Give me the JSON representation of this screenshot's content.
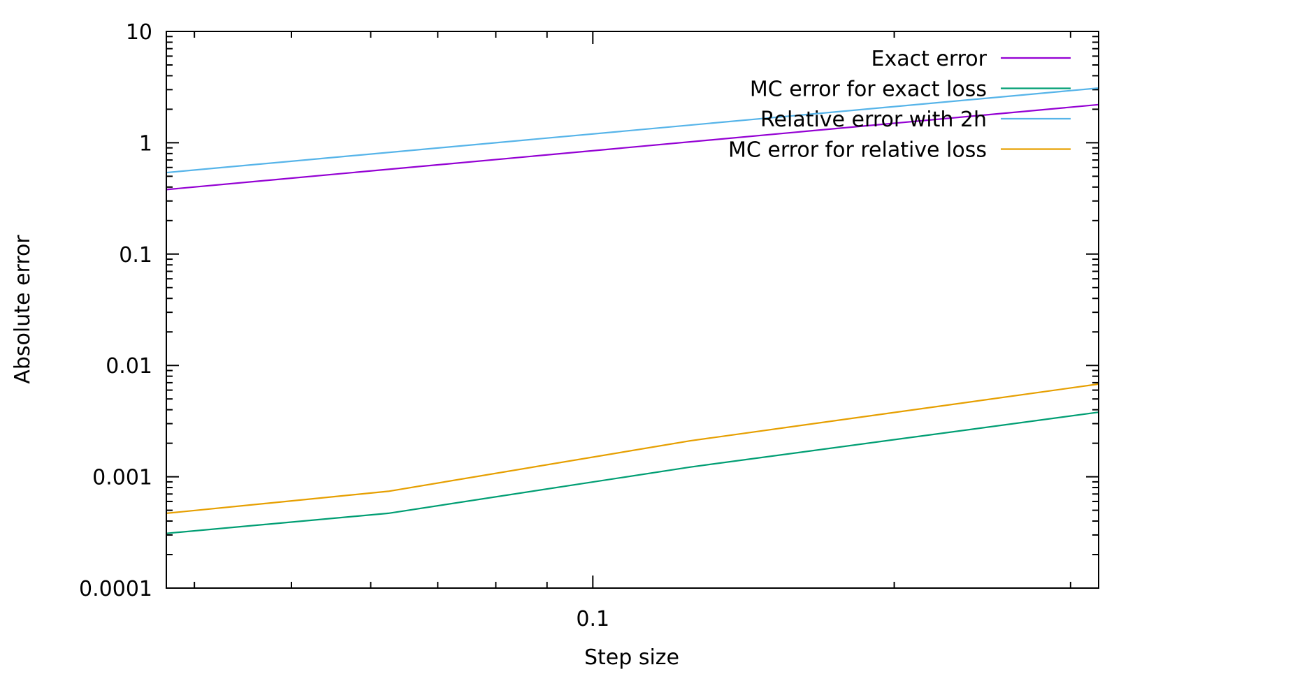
{
  "chart_data": {
    "type": "line",
    "xlabel": "Step size",
    "ylabel": "Absolute error",
    "xscale": "log",
    "yscale": "log",
    "xlim": [
      0.0375,
      0.32
    ],
    "ylim": [
      0.0001,
      10
    ],
    "x_tick_labels": [
      {
        "value": 0.1,
        "label": "0.1"
      }
    ],
    "y_tick_labels": [
      {
        "value": 0.0001,
        "label": "0.0001"
      },
      {
        "value": 0.001,
        "label": "0.001"
      },
      {
        "value": 0.01,
        "label": "0.01"
      },
      {
        "value": 0.1,
        "label": "0.1"
      },
      {
        "value": 1,
        "label": "1"
      },
      {
        "value": 10,
        "label": "10"
      }
    ],
    "grid": false,
    "legend_position": "top-right",
    "series": [
      {
        "name": "Exact error",
        "color": "#9400d3",
        "x": [
          0.0375,
          0.32
        ],
        "y": [
          0.38,
          2.2
        ]
      },
      {
        "name": "MC error for exact loss",
        "color": "#009e73",
        "x": [
          0.0375,
          0.0625,
          0.125,
          0.32
        ],
        "y": [
          0.00031,
          0.00047,
          0.00122,
          0.0038
        ]
      },
      {
        "name": "Relative error with 2h",
        "color": "#56b4e9",
        "x": [
          0.0375,
          0.32
        ],
        "y": [
          0.54,
          3.1
        ]
      },
      {
        "name": "MC error for relative loss",
        "color": "#e69f00",
        "x": [
          0.0375,
          0.0625,
          0.125,
          0.32
        ],
        "y": [
          0.00047,
          0.00074,
          0.0021,
          0.0068
        ]
      }
    ]
  }
}
